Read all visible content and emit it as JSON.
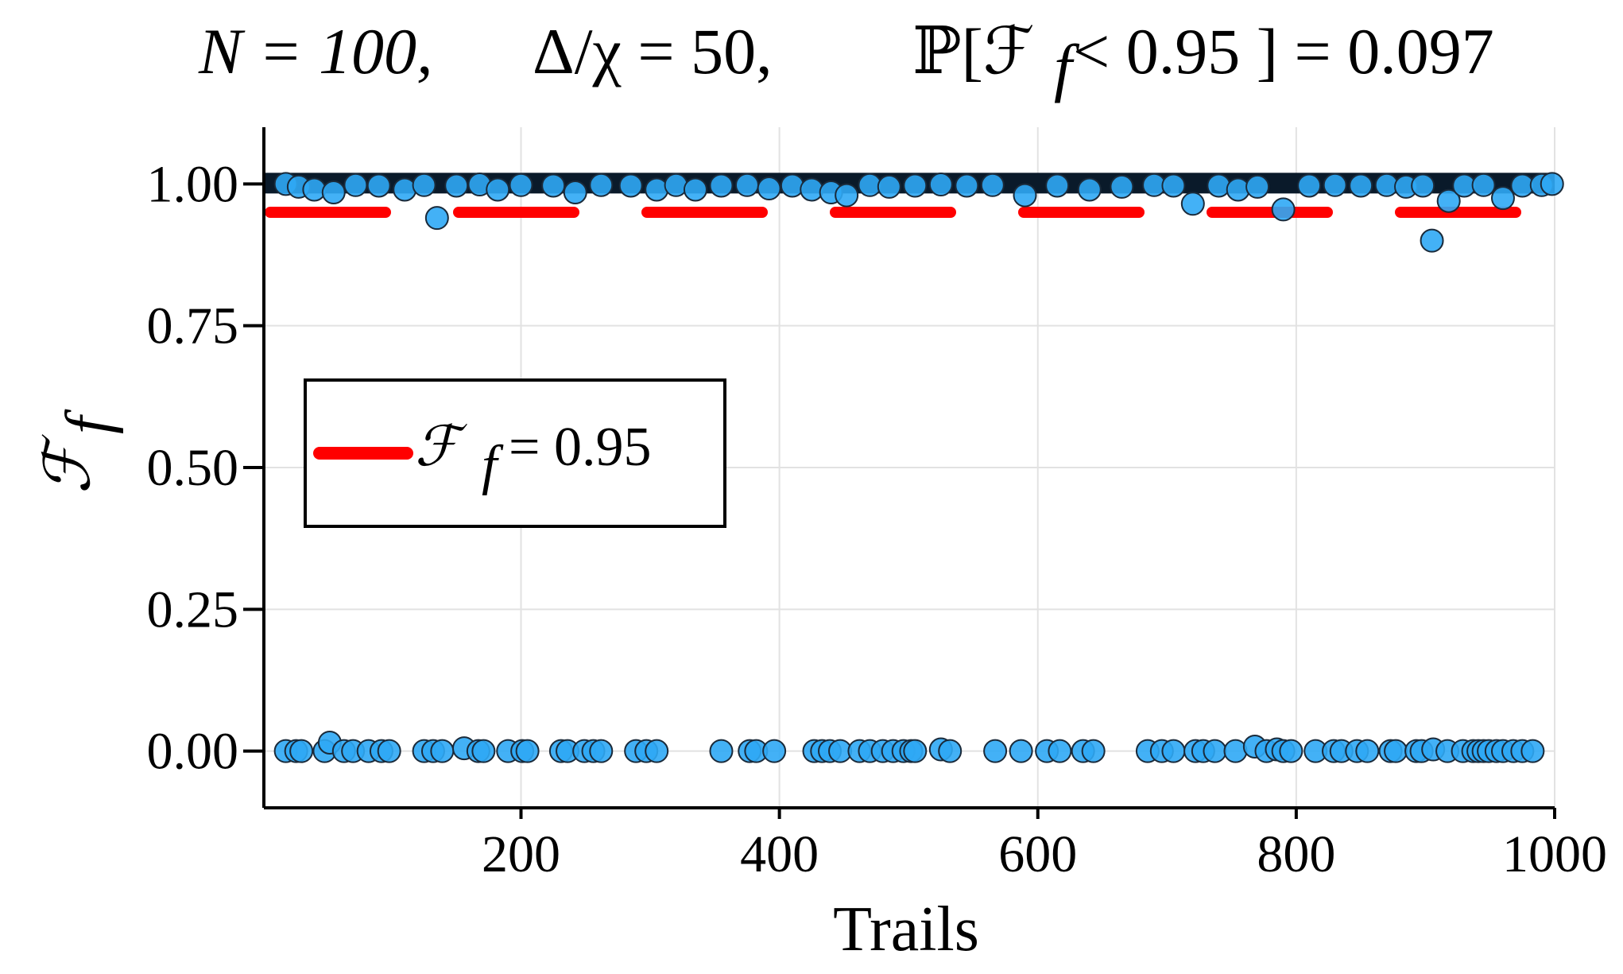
{
  "chart_data": {
    "type": "scatter",
    "title": "N = 100,   Δ/χ = 50,   ℙ[ℱ_f < 0.95 ] = 0.097",
    "title_parts": {
      "n_part": "N = 100,",
      "ratio_part": "Δ/χ = 50,",
      "prob_part": "ℙ[ℱ",
      "prob_sub": "f",
      "prob_rest": " < 0.95 ] = 0.097"
    },
    "xlabel": "Trails",
    "ylabel": "ℱ",
    "ylabel_sub": "f",
    "xlim": [
      1,
      1000
    ],
    "ylim": [
      -0.1,
      1.1
    ],
    "x_ticks": [
      200,
      400,
      600,
      800,
      1000
    ],
    "x_tick_labels": [
      "200",
      "400",
      "600",
      "800",
      "1000"
    ],
    "y_ticks": [
      0.0,
      0.25,
      0.5,
      0.75,
      1.0
    ],
    "y_tick_labels": [
      "0.00",
      "0.25",
      "0.50",
      "0.75",
      "1.00"
    ],
    "grid": true,
    "legend": {
      "placement": "center-left",
      "entries": [
        {
          "label": "ℱ",
          "sub": "f",
          "rest": " = 0.95",
          "color": "#ff0000",
          "style": "dashed"
        }
      ]
    },
    "threshold": {
      "y": 0.95,
      "color": "#ff0000"
    },
    "marker_color": "#2fa8f5",
    "marker_edge_color": "#1a2a3a",
    "series": [
      {
        "kind": "high",
        "points": [
          {
            "x": 18,
            "y": 1.0
          },
          {
            "x": 28,
            "y": 0.995
          },
          {
            "x": 40,
            "y": 0.99
          },
          {
            "x": 55,
            "y": 0.985
          },
          {
            "x": 72,
            "y": 0.998
          },
          {
            "x": 90,
            "y": 0.997
          },
          {
            "x": 110,
            "y": 0.99
          },
          {
            "x": 125,
            "y": 0.998
          },
          {
            "x": 135,
            "y": 0.94
          },
          {
            "x": 150,
            "y": 0.997
          },
          {
            "x": 168,
            "y": 0.999
          },
          {
            "x": 182,
            "y": 0.99
          },
          {
            "x": 200,
            "y": 0.998
          },
          {
            "x": 225,
            "y": 0.997
          },
          {
            "x": 242,
            "y": 0.985
          },
          {
            "x": 262,
            "y": 0.998
          },
          {
            "x": 285,
            "y": 0.997
          },
          {
            "x": 305,
            "y": 0.99
          },
          {
            "x": 320,
            "y": 0.998
          },
          {
            "x": 335,
            "y": 0.99
          },
          {
            "x": 355,
            "y": 0.997
          },
          {
            "x": 375,
            "y": 0.998
          },
          {
            "x": 392,
            "y": 0.992
          },
          {
            "x": 410,
            "y": 0.997
          },
          {
            "x": 425,
            "y": 0.99
          },
          {
            "x": 440,
            "y": 0.985
          },
          {
            "x": 452,
            "y": 0.98
          },
          {
            "x": 470,
            "y": 0.998
          },
          {
            "x": 485,
            "y": 0.995
          },
          {
            "x": 505,
            "y": 0.997
          },
          {
            "x": 525,
            "y": 0.999
          },
          {
            "x": 545,
            "y": 0.997
          },
          {
            "x": 565,
            "y": 0.998
          },
          {
            "x": 590,
            "y": 0.98
          },
          {
            "x": 615,
            "y": 0.997
          },
          {
            "x": 640,
            "y": 0.99
          },
          {
            "x": 665,
            "y": 0.995
          },
          {
            "x": 690,
            "y": 0.998
          },
          {
            "x": 705,
            "y": 0.997
          },
          {
            "x": 720,
            "y": 0.965
          },
          {
            "x": 740,
            "y": 0.997
          },
          {
            "x": 755,
            "y": 0.99
          },
          {
            "x": 770,
            "y": 0.995
          },
          {
            "x": 790,
            "y": 0.955
          },
          {
            "x": 810,
            "y": 0.997
          },
          {
            "x": 830,
            "y": 0.998
          },
          {
            "x": 850,
            "y": 0.997
          },
          {
            "x": 870,
            "y": 0.998
          },
          {
            "x": 885,
            "y": 0.995
          },
          {
            "x": 898,
            "y": 0.997
          },
          {
            "x": 905,
            "y": 0.9
          },
          {
            "x": 918,
            "y": 0.97
          },
          {
            "x": 930,
            "y": 0.997
          },
          {
            "x": 945,
            "y": 0.998
          },
          {
            "x": 960,
            "y": 0.975
          },
          {
            "x": 975,
            "y": 0.997
          },
          {
            "x": 990,
            "y": 0.998
          },
          {
            "x": 998,
            "y": 1.0
          }
        ]
      },
      {
        "kind": "low",
        "points": [
          {
            "x": 18,
            "y": 0.0
          },
          {
            "x": 26,
            "y": 0.0
          },
          {
            "x": 30,
            "y": 0.0
          },
          {
            "x": 48,
            "y": 0.0
          },
          {
            "x": 52,
            "y": 0.015
          },
          {
            "x": 63,
            "y": 0.0
          },
          {
            "x": 70,
            "y": 0.0
          },
          {
            "x": 82,
            "y": 0.0
          },
          {
            "x": 92,
            "y": 0.0
          },
          {
            "x": 98,
            "y": 0.0
          },
          {
            "x": 125,
            "y": 0.0
          },
          {
            "x": 132,
            "y": 0.0
          },
          {
            "x": 139,
            "y": 0.0
          },
          {
            "x": 156,
            "y": 0.005
          },
          {
            "x": 167,
            "y": 0.0
          },
          {
            "x": 171,
            "y": 0.0
          },
          {
            "x": 190,
            "y": 0.0
          },
          {
            "x": 201,
            "y": 0.0
          },
          {
            "x": 205,
            "y": 0.0
          },
          {
            "x": 231,
            "y": 0.0
          },
          {
            "x": 236,
            "y": 0.0
          },
          {
            "x": 249,
            "y": 0.0
          },
          {
            "x": 256,
            "y": 0.0
          },
          {
            "x": 262,
            "y": 0.0
          },
          {
            "x": 289,
            "y": 0.0
          },
          {
            "x": 297,
            "y": 0.0
          },
          {
            "x": 305,
            "y": 0.0
          },
          {
            "x": 355,
            "y": 0.0
          },
          {
            "x": 377,
            "y": 0.0
          },
          {
            "x": 382,
            "y": 0.0
          },
          {
            "x": 396,
            "y": 0.0
          },
          {
            "x": 427,
            "y": 0.0
          },
          {
            "x": 433,
            "y": 0.0
          },
          {
            "x": 439,
            "y": 0.0
          },
          {
            "x": 447,
            "y": 0.0
          },
          {
            "x": 462,
            "y": 0.0
          },
          {
            "x": 470,
            "y": 0.0
          },
          {
            "x": 480,
            "y": 0.0
          },
          {
            "x": 488,
            "y": 0.0
          },
          {
            "x": 496,
            "y": 0.0
          },
          {
            "x": 502,
            "y": 0.0
          },
          {
            "x": 505,
            "y": 0.0
          },
          {
            "x": 525,
            "y": 0.003
          },
          {
            "x": 532,
            "y": 0.0
          },
          {
            "x": 567,
            "y": 0.0
          },
          {
            "x": 587,
            "y": 0.0
          },
          {
            "x": 607,
            "y": 0.0
          },
          {
            "x": 617,
            "y": 0.0
          },
          {
            "x": 635,
            "y": 0.0
          },
          {
            "x": 643,
            "y": 0.0
          },
          {
            "x": 685,
            "y": 0.0
          },
          {
            "x": 696,
            "y": 0.0
          },
          {
            "x": 705,
            "y": 0.0
          },
          {
            "x": 722,
            "y": 0.0
          },
          {
            "x": 728,
            "y": 0.0
          },
          {
            "x": 737,
            "y": 0.0
          },
          {
            "x": 753,
            "y": 0.0
          },
          {
            "x": 768,
            "y": 0.008
          },
          {
            "x": 777,
            "y": 0.0
          },
          {
            "x": 785,
            "y": 0.003
          },
          {
            "x": 790,
            "y": 0.0
          },
          {
            "x": 796,
            "y": 0.0
          },
          {
            "x": 815,
            "y": 0.0
          },
          {
            "x": 829,
            "y": 0.0
          },
          {
            "x": 835,
            "y": 0.0
          },
          {
            "x": 847,
            "y": 0.0
          },
          {
            "x": 855,
            "y": 0.0
          },
          {
            "x": 873,
            "y": 0.0
          },
          {
            "x": 877,
            "y": 0.0
          },
          {
            "x": 893,
            "y": 0.0
          },
          {
            "x": 897,
            "y": 0.0
          },
          {
            "x": 906,
            "y": 0.003
          },
          {
            "x": 917,
            "y": 0.0
          },
          {
            "x": 929,
            "y": 0.0
          },
          {
            "x": 937,
            "y": 0.0
          },
          {
            "x": 941,
            "y": 0.0
          },
          {
            "x": 945,
            "y": 0.0
          },
          {
            "x": 949,
            "y": 0.0
          },
          {
            "x": 955,
            "y": 0.0
          },
          {
            "x": 960,
            "y": 0.0
          },
          {
            "x": 968,
            "y": 0.0
          },
          {
            "x": 975,
            "y": 0.0
          },
          {
            "x": 983,
            "y": 0.0
          }
        ]
      }
    ]
  }
}
